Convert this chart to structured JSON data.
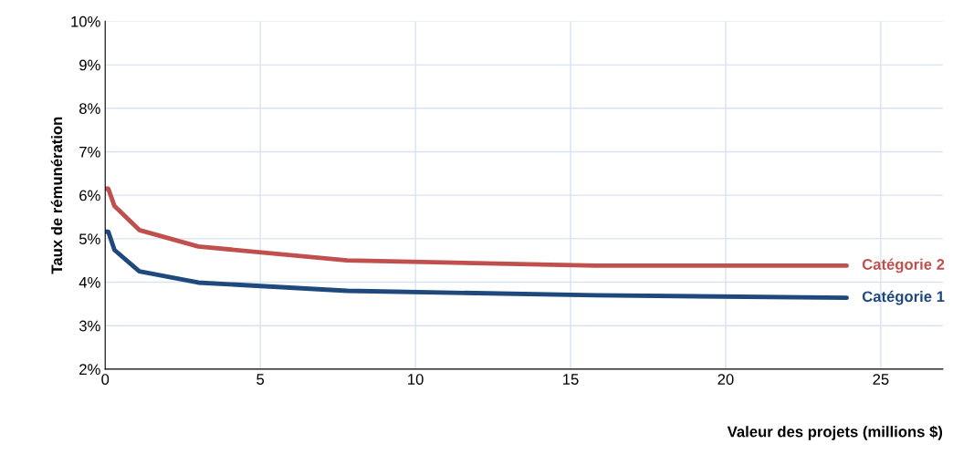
{
  "chart_data": {
    "type": "line",
    "xlabel": "Valeur des projets (millions $)",
    "ylabel": "Taux de rémunération",
    "xlim": [
      0,
      27
    ],
    "xticks": [
      0,
      5,
      10,
      15,
      20,
      25
    ],
    "ylim": [
      2,
      10
    ],
    "yticks": [
      {
        "value": 2,
        "label": "2%"
      },
      {
        "value": 3,
        "label": "3%"
      },
      {
        "value": 4,
        "label": "4%"
      },
      {
        "value": 5,
        "label": "5%"
      },
      {
        "value": 6,
        "label": "6%"
      },
      {
        "value": 7,
        "label": "7%"
      },
      {
        "value": 8,
        "label": "8%"
      },
      {
        "value": 9,
        "label": "9%"
      },
      {
        "value": 10,
        "label": "10%"
      }
    ],
    "grid": true,
    "legend": false,
    "marker": "none",
    "line_style": "solid",
    "series": [
      {
        "name": "Catégorie 2",
        "color": "#c0504d",
        "x": [
          0,
          0.1,
          0.3,
          1.1,
          3,
          7.8,
          15.8,
          23.9
        ],
        "values": [
          6.15,
          6.15,
          5.75,
          5.2,
          4.82,
          4.5,
          4.38,
          4.38
        ]
      },
      {
        "name": "Catégorie 1",
        "color": "#1f497d",
        "x": [
          0,
          0.1,
          0.3,
          1.1,
          3,
          7.8,
          15.8,
          23.9
        ],
        "values": [
          5.16,
          5.16,
          4.74,
          4.25,
          3.99,
          3.8,
          3.7,
          3.64
        ]
      }
    ]
  }
}
